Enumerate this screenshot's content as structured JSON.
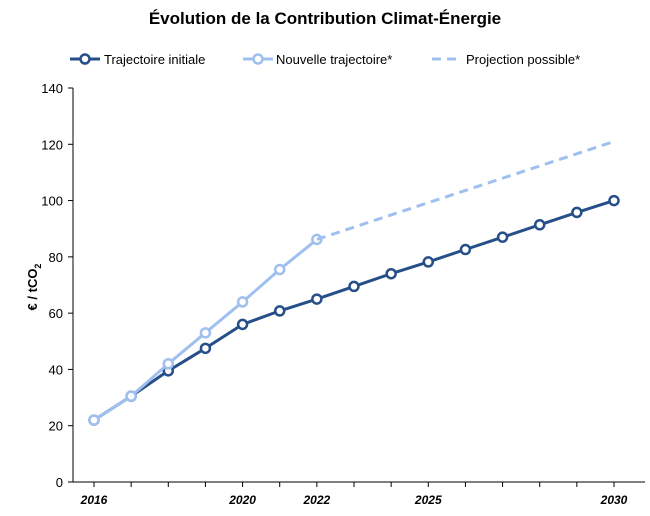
{
  "chart_data": {
    "type": "line",
    "title": "Évolution de la Contribution Climat-Énergie",
    "ylabel": "€ / tCO₂",
    "ylabel_main": "€ / tCO",
    "ylabel_sub": "2",
    "xlabel": "",
    "ylim": [
      0,
      140
    ],
    "xlim": [
      2016,
      2030
    ],
    "grid": false,
    "legend_position": "top",
    "y_ticks": [
      "0",
      "20",
      "40",
      "60",
      "80",
      "100",
      "120",
      "140"
    ],
    "x_ticks": [
      {
        "year": 2016,
        "label": "2016"
      },
      {
        "year": 2020,
        "label": "2020"
      },
      {
        "year": 2022,
        "label": "2022"
      },
      {
        "year": 2025,
        "label": "2025"
      },
      {
        "year": 2030,
        "label": "2030"
      }
    ],
    "series": [
      {
        "name": "Trajectoire initiale",
        "style": "solid-marker",
        "color": "#264f8a",
        "x": [
          2016,
          2017,
          2018,
          2019,
          2020,
          2021,
          2022,
          2023,
          2024,
          2025,
          2026,
          2027,
          2028,
          2029,
          2030
        ],
        "values": [
          22,
          30.5,
          39.5,
          47.5,
          56,
          60.8,
          65,
          69.5,
          74,
          78.2,
          82.6,
          87,
          91.4,
          95.8,
          100
        ]
      },
      {
        "name": "Nouvelle trajectoire*",
        "style": "solid-marker",
        "color": "#9fc0ef",
        "x": [
          2016,
          2017,
          2018,
          2019,
          2020,
          2021,
          2022
        ],
        "values": [
          22,
          30.5,
          42,
          53,
          64,
          75.5,
          86.2
        ]
      },
      {
        "name": "Projection possible*",
        "style": "dashed",
        "color": "#9fc0ef",
        "x": [
          2022,
          2030
        ],
        "values": [
          86.2,
          121
        ]
      }
    ]
  }
}
